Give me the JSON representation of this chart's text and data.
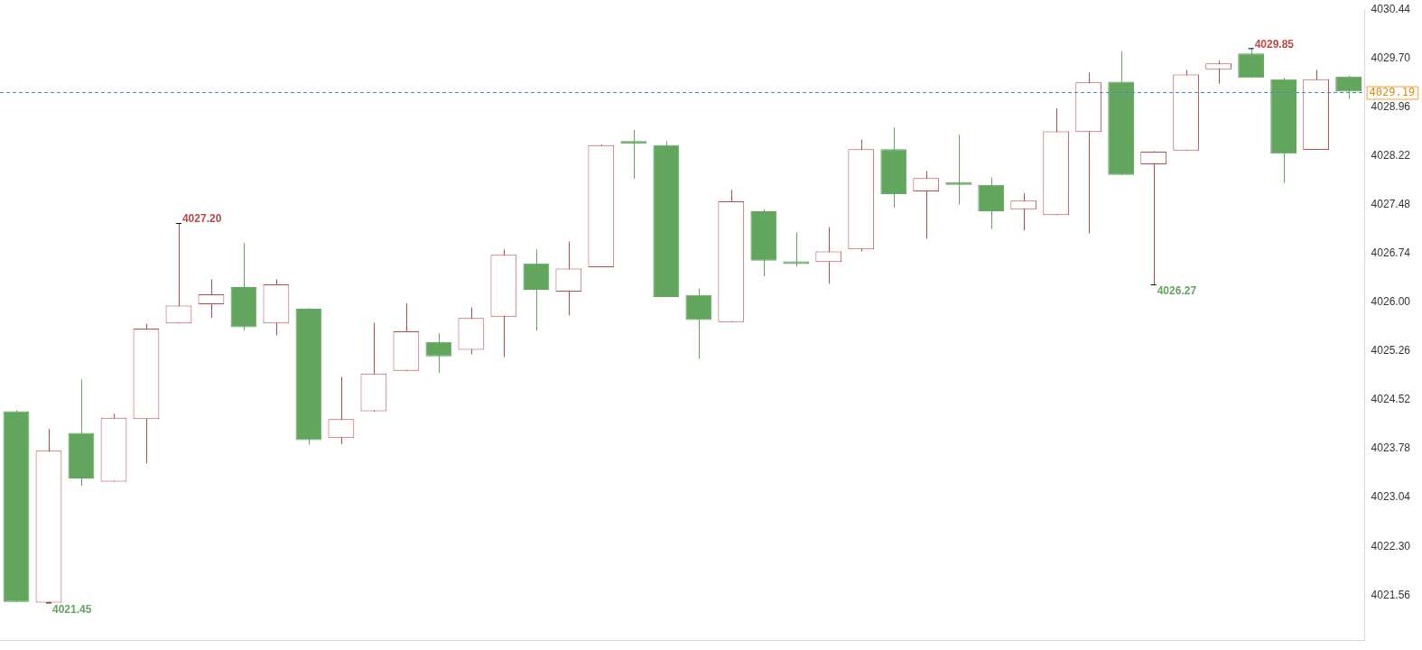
{
  "chart_data": {
    "type": "candlestick",
    "categories": [
      null,
      null,
      null,
      null,
      null,
      null,
      null,
      null,
      null,
      null,
      null,
      null,
      null,
      null,
      null,
      null,
      null,
      null,
      null,
      null,
      null,
      null,
      null,
      null,
      null,
      null,
      null,
      null,
      null,
      null,
      null,
      null,
      null,
      null,
      null,
      null,
      null,
      null,
      null,
      null,
      null,
      null
    ],
    "ohlc": [
      [
        4024.35,
        4024.36,
        4021.46,
        4021.46
      ],
      [
        4021.45,
        4024.08,
        4021.45,
        4023.75
      ],
      [
        4024.02,
        4024.83,
        4023.22,
        4023.33
      ],
      [
        4023.28,
        4024.31,
        4023.28,
        4024.25
      ],
      [
        4024.23,
        4025.67,
        4023.56,
        4025.6
      ],
      [
        4025.68,
        4027.2,
        4025.68,
        4025.95
      ],
      [
        4025.97,
        4026.35,
        4025.76,
        4026.12
      ],
      [
        4026.23,
        4026.9,
        4025.57,
        4025.62
      ],
      [
        4025.68,
        4026.35,
        4025.5,
        4026.27
      ],
      [
        4025.9,
        4025.91,
        4023.84,
        4023.91
      ],
      [
        4023.94,
        4024.87,
        4023.85,
        4024.23
      ],
      [
        4024.35,
        4025.69,
        4024.34,
        4024.92
      ],
      [
        4024.96,
        4025.98,
        4024.96,
        4025.56
      ],
      [
        4025.4,
        4025.53,
        4024.93,
        4025.18
      ],
      [
        4025.28,
        4025.92,
        4025.21,
        4025.76
      ],
      [
        4025.78,
        4026.8,
        4025.17,
        4026.72
      ],
      [
        4026.59,
        4026.8,
        4025.57,
        4026.19
      ],
      [
        4026.16,
        4026.92,
        4025.8,
        4026.51
      ],
      [
        4026.53,
        4028.39,
        4026.53,
        4028.38
      ],
      [
        4028.44,
        4028.61,
        4027.87,
        4028.4
      ],
      [
        4028.38,
        4028.44,
        4026.08,
        4026.08
      ],
      [
        4026.11,
        4026.21,
        4025.14,
        4025.73
      ],
      [
        4025.7,
        4027.7,
        4025.7,
        4027.53
      ],
      [
        4027.38,
        4027.41,
        4026.39,
        4026.63
      ],
      [
        4026.59,
        4027.06,
        4026.54,
        4026.58
      ],
      [
        4026.61,
        4027.14,
        4026.28,
        4026.77
      ],
      [
        4026.8,
        4028.46,
        4026.77,
        4028.32
      ],
      [
        4028.32,
        4028.65,
        4027.43,
        4027.64
      ],
      [
        4027.68,
        4027.99,
        4026.96,
        4027.88
      ],
      [
        4027.81,
        4028.54,
        4027.48,
        4027.78
      ],
      [
        4027.78,
        4027.89,
        4027.11,
        4027.38
      ],
      [
        4027.41,
        4027.65,
        4027.09,
        4027.54
      ],
      [
        4027.32,
        4028.94,
        4027.32,
        4028.59
      ],
      [
        4028.58,
        4029.48,
        4027.04,
        4029.33
      ],
      [
        4029.34,
        4029.8,
        4027.93,
        4027.93
      ],
      [
        4028.09,
        4028.29,
        4026.27,
        4028.28
      ],
      [
        4028.3,
        4029.52,
        4028.3,
        4029.45
      ],
      [
        4029.53,
        4029.66,
        4029.31,
        4029.62
      ],
      [
        4029.77,
        4029.85,
        4029.4,
        4029.4
      ],
      [
        4029.38,
        4029.4,
        4027.81,
        4028.25
      ],
      [
        4028.31,
        4029.52,
        4028.31,
        4029.38
      ],
      [
        4029.42,
        4029.43,
        4029.08,
        4029.19
      ]
    ],
    "colors": [
      "#62a55c",
      "#b94a48",
      "#62a55c",
      "#b94a48",
      "#b94a48",
      "#b94a48",
      "#b94a48",
      "#62a55c",
      "#b94a48",
      "#62a55c",
      "#b94a48",
      "#b94a48",
      "#b94a48",
      "#62a55c",
      "#b94a48",
      "#b94a48",
      "#62a55c",
      "#b94a48",
      "#b94a48",
      "#62a55c",
      "#62a55c",
      "#62a55c",
      "#b94a48",
      "#62a55c",
      "#62a55c",
      "#b94a48",
      "#b94a48",
      "#62a55c",
      "#b94a48",
      "#62a55c",
      "#62a55c",
      "#b94a48",
      "#b94a48",
      "#b94a48",
      "#62a55c",
      "#b94a48",
      "#b94a48",
      "#b94a48",
      "#62a55c",
      "#62a55c",
      "#b94a48",
      "#62a55c"
    ],
    "ylim": [
      4020.87,
      4030.44
    ],
    "yticks": [
      4021.56,
      {
        "value": 4022.3,
        "label": "4022.30"
      },
      4023.04,
      4023.78,
      4024.52,
      4025.26,
      {
        "value": 4026,
        "label": "4026.00"
      },
      4026.74,
      4027.48,
      4028.22,
      4028.96,
      {
        "value": 4029.7,
        "label": "4029.70"
      },
      4030.44
    ],
    "ref_lines": [
      {
        "axis": "y",
        "value": 4029.19,
        "label": "4029.19",
        "color": "#3b8fc4",
        "line_style": "dashed"
      }
    ],
    "annotations": [
      "4027.20",
      "4029.85",
      "4021.45",
      "4026.27"
    ],
    "grid": false,
    "legend": false
  }
}
